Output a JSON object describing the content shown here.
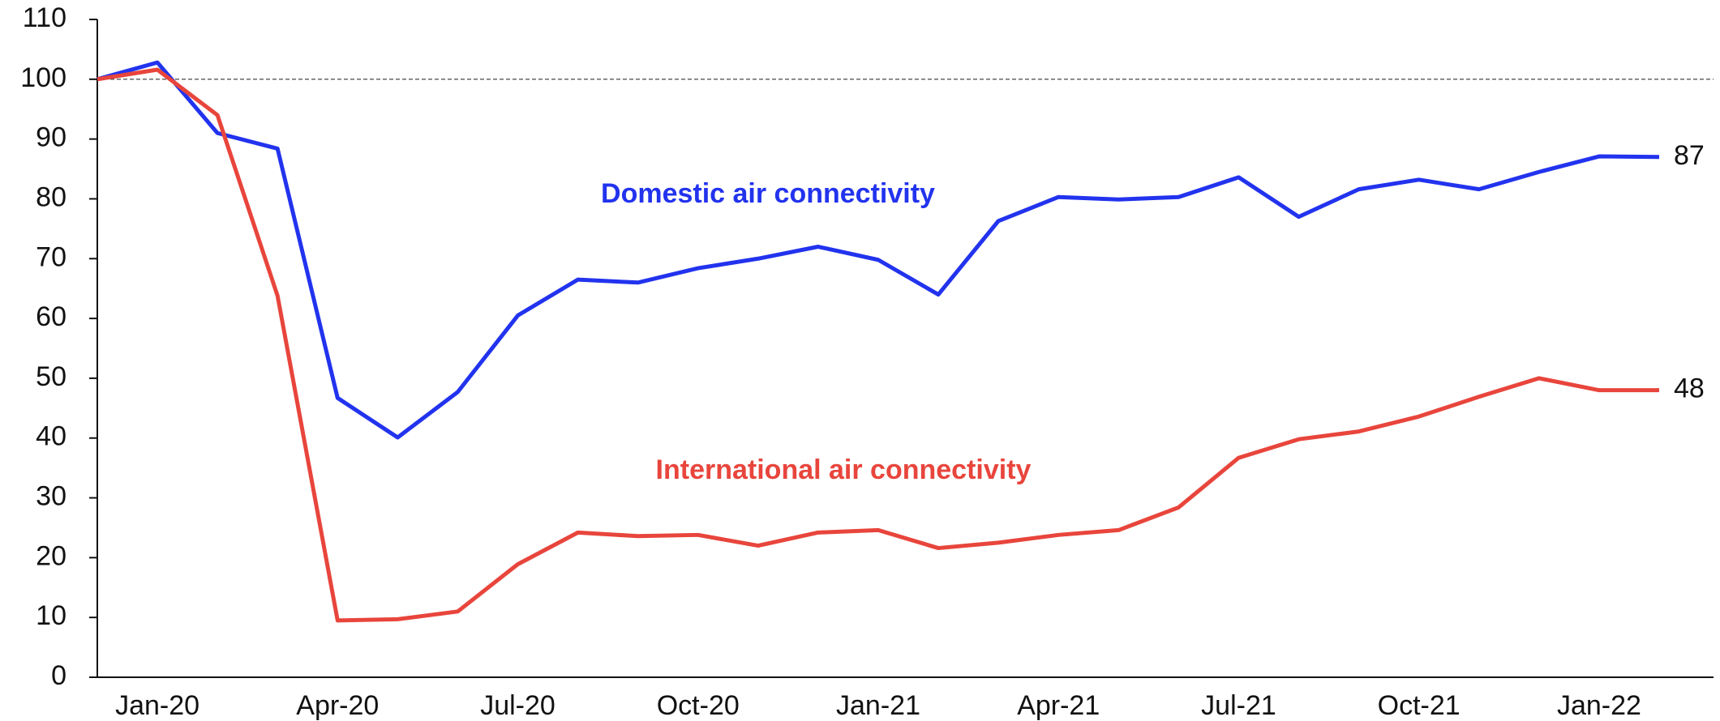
{
  "chart_data": {
    "type": "line",
    "categories": [
      null,
      "Jan-20",
      null,
      null,
      "Apr-20",
      null,
      null,
      "Jul-20",
      null,
      null,
      "Oct-20",
      null,
      null,
      "Jan-21",
      null,
      null,
      "Apr-21",
      null,
      null,
      "Jul-21",
      null,
      null,
      "Oct-21",
      null,
      null,
      "Jan-22",
      null
    ],
    "series": [
      {
        "name": "Domestic air connectivity",
        "color": "#2233ee",
        "values": [
          100,
          102.8,
          91,
          88.4,
          46.7,
          40.1,
          47.7,
          60.5,
          66.5,
          66,
          68.4,
          70,
          72,
          69.8,
          64,
          76.3,
          80.3,
          79.9,
          80.3,
          83.6,
          77,
          81.6,
          83.2,
          81.6,
          84.5,
          87.1,
          87
        ]
      },
      {
        "name": "International air connectivity",
        "color": "#e8453c",
        "values": [
          100,
          101.6,
          94,
          63.8,
          9.5,
          9.7,
          11,
          18.9,
          24.2,
          23.6,
          23.8,
          22,
          24.2,
          24.6,
          21.6,
          22.5,
          23.8,
          24.6,
          28.4,
          36.7,
          39.8,
          41.1,
          43.6,
          46.9,
          50,
          48,
          48
        ]
      }
    ],
    "ylim": [
      0,
      110
    ],
    "yticks": [
      0,
      10,
      20,
      30,
      40,
      50,
      60,
      70,
      80,
      90,
      100,
      110
    ],
    "reference_line": 100,
    "grid": false
  }
}
